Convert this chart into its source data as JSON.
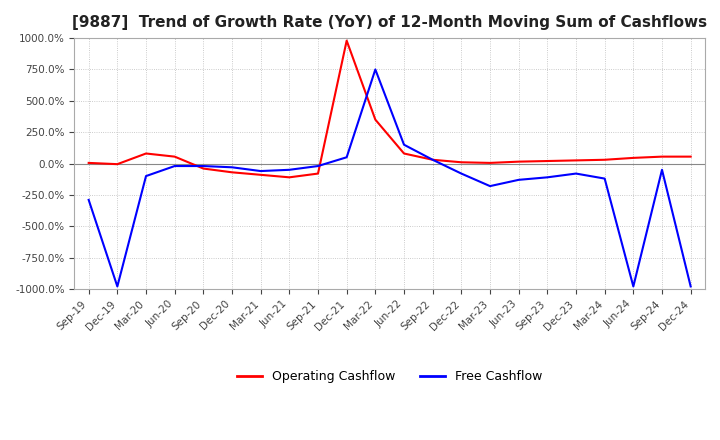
{
  "title": "[9887]  Trend of Growth Rate (YoY) of 12-Month Moving Sum of Cashflows",
  "title_fontsize": 11,
  "ylim": [
    -1000,
    1000
  ],
  "yticks": [
    1000.0,
    750.0,
    500.0,
    250.0,
    0.0,
    -250.0,
    -500.0,
    -750.0,
    -1000.0
  ],
  "background_color": "#ffffff",
  "plot_background": "#ffffff",
  "grid_color": "#bbbbbb",
  "legend": [
    "Operating Cashflow",
    "Free Cashflow"
  ],
  "legend_colors": [
    "#ff0000",
    "#0000ff"
  ],
  "x_labels": [
    "Sep-19",
    "Dec-19",
    "Mar-20",
    "Jun-20",
    "Sep-20",
    "Dec-20",
    "Mar-21",
    "Jun-21",
    "Sep-21",
    "Dec-21",
    "Mar-22",
    "Jun-22",
    "Sep-22",
    "Dec-22",
    "Mar-23",
    "Jun-23",
    "Sep-23",
    "Dec-23",
    "Mar-24",
    "Jun-24",
    "Sep-24",
    "Dec-24"
  ],
  "operating_cashflow": [
    5,
    -5,
    80,
    55,
    -40,
    -70,
    -90,
    -110,
    -80,
    980,
    350,
    80,
    30,
    10,
    5,
    15,
    20,
    25,
    30,
    45,
    55,
    55
  ],
  "free_cashflow": [
    -290,
    -980,
    -100,
    -20,
    -20,
    -30,
    -60,
    -50,
    -20,
    50,
    750,
    150,
    30,
    -80,
    -180,
    -130,
    -110,
    -80,
    -120,
    -980,
    -50,
    -980
  ]
}
